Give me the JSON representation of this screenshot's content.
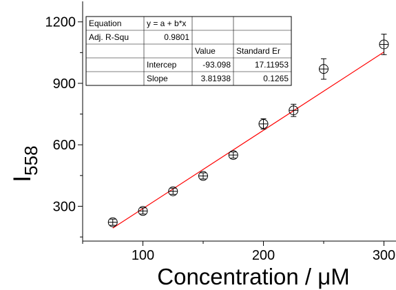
{
  "chart_data": {
    "type": "scatter",
    "xlabel": "Concentration / μM",
    "ylabel": "I",
    "ylabel_subscript": "558",
    "xlim": [
      50,
      310
    ],
    "ylim": [
      130,
      1300
    ],
    "x_ticks": [
      100,
      200,
      300
    ],
    "y_ticks": [
      300,
      600,
      900,
      1200
    ],
    "grid": false,
    "series": [
      {
        "marker": "circle-cross",
        "color": "#000000",
        "x": [
          75,
          100,
          125,
          150,
          175,
          200,
          225,
          250,
          300
        ],
        "y": [
          222,
          277,
          373,
          448,
          550,
          702,
          768,
          970,
          1090
        ],
        "yerr": [
          15,
          15,
          15,
          15,
          15,
          25,
          30,
          50,
          50
        ]
      }
    ],
    "fit": {
      "type": "linear",
      "color": "#ff0000",
      "intercept": -93.098,
      "slope": 3.81938,
      "x_range": [
        75,
        300
      ]
    },
    "fit_table": {
      "rows": [
        [
          "Equation",
          "y = a + b*x",
          "",
          ""
        ],
        [
          "Adj. R-Squ",
          "0.9801",
          "",
          ""
        ],
        [
          "",
          "",
          "Value",
          "Standard Er"
        ],
        [
          "",
          "Intercep",
          "-93.098",
          "17.11953"
        ],
        [
          "",
          "Slope",
          "3.81938",
          "0.1265"
        ]
      ]
    }
  }
}
